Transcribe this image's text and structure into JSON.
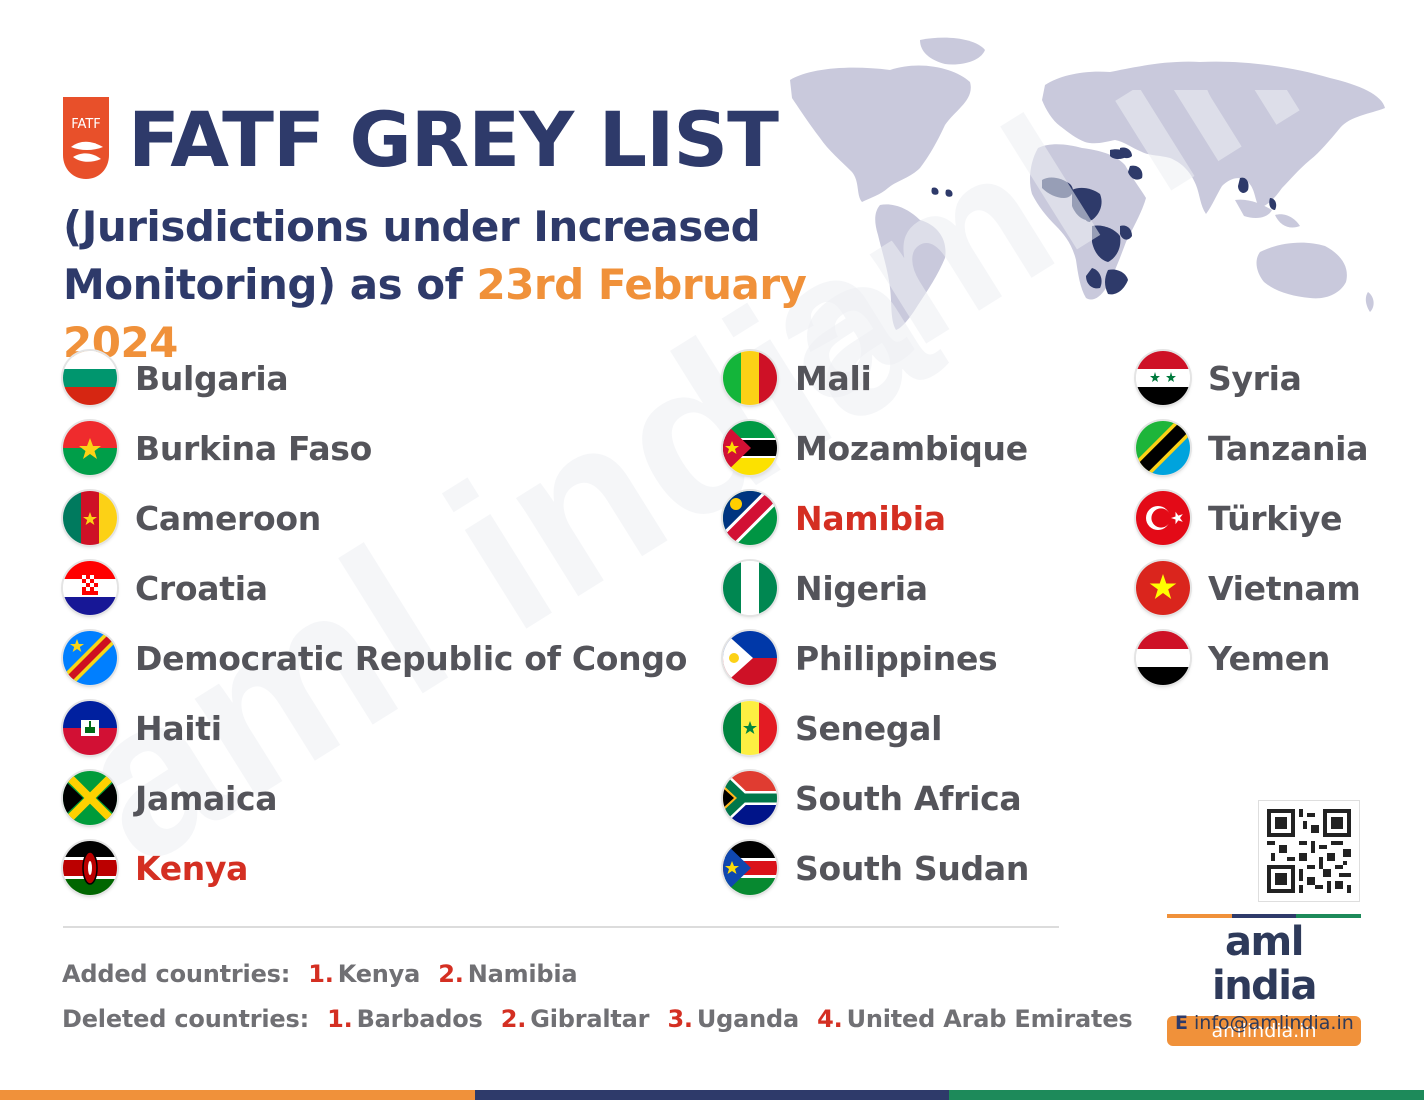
{
  "header": {
    "logo_text": "FATF",
    "title": "FATF GREY LIST",
    "subtitle_line1": "(Jurisdictions under Increased",
    "subtitle_line2": "Monitoring) as of ",
    "subtitle_date": "23rd February 2024"
  },
  "watermark_text": "aml india",
  "colors": {
    "navy": "#2e3a6a",
    "orange": "#f0913a",
    "green": "#1d8a5a",
    "red": "#d42f22",
    "map_land": "#c9c9dc",
    "map_highlight": "#2e3a6a"
  },
  "countries": {
    "col1": [
      {
        "name": "Bulgaria",
        "flag": "bulgaria-flag-icon",
        "added": false
      },
      {
        "name": "Burkina Faso",
        "flag": "burkina-faso-flag-icon",
        "added": false
      },
      {
        "name": "Cameroon",
        "flag": "cameroon-flag-icon",
        "added": false
      },
      {
        "name": "Croatia",
        "flag": "croatia-flag-icon",
        "added": false
      },
      {
        "name": "Democratic Republic of Congo",
        "flag": "drc-flag-icon",
        "added": false
      },
      {
        "name": "Haiti",
        "flag": "haiti-flag-icon",
        "added": false
      },
      {
        "name": "Jamaica",
        "flag": "jamaica-flag-icon",
        "added": false
      },
      {
        "name": "Kenya",
        "flag": "kenya-flag-icon",
        "added": true
      }
    ],
    "col2": [
      {
        "name": "Mali",
        "flag": "mali-flag-icon",
        "added": false
      },
      {
        "name": "Mozambique",
        "flag": "mozambique-flag-icon",
        "added": false
      },
      {
        "name": "Namibia",
        "flag": "namibia-flag-icon",
        "added": true
      },
      {
        "name": "Nigeria",
        "flag": "nigeria-flag-icon",
        "added": false
      },
      {
        "name": "Philippines",
        "flag": "philippines-flag-icon",
        "added": false
      },
      {
        "name": "Senegal",
        "flag": "senegal-flag-icon",
        "added": false
      },
      {
        "name": "South Africa",
        "flag": "south-africa-flag-icon",
        "added": false
      },
      {
        "name": "South Sudan",
        "flag": "south-sudan-flag-icon",
        "added": false
      }
    ],
    "col3": [
      {
        "name": "Syria",
        "flag": "syria-flag-icon",
        "added": false
      },
      {
        "name": "Tanzania",
        "flag": "tanzania-flag-icon",
        "added": false
      },
      {
        "name": "Türkiye",
        "flag": "turkiye-flag-icon",
        "added": false
      },
      {
        "name": "Vietnam",
        "flag": "vietnam-flag-icon",
        "added": false
      },
      {
        "name": "Yemen",
        "flag": "yemen-flag-icon",
        "added": false
      }
    ]
  },
  "footer": {
    "added_label": "Added countries:",
    "added": [
      {
        "num": "1.",
        "name": "Kenya"
      },
      {
        "num": "2.",
        "name": "Namibia"
      }
    ],
    "deleted_label": "Deleted countries:",
    "deleted": [
      {
        "num": "1.",
        "name": "Barbados"
      },
      {
        "num": "2.",
        "name": "Gibraltar"
      },
      {
        "num": "3.",
        "name": "Uganda"
      },
      {
        "num": "4.",
        "name": "United Arab Emirates"
      }
    ]
  },
  "brand": {
    "name": "aml india",
    "url": "amlindia.in",
    "email_prefix": "E",
    "email": "info@amlindia.in"
  }
}
